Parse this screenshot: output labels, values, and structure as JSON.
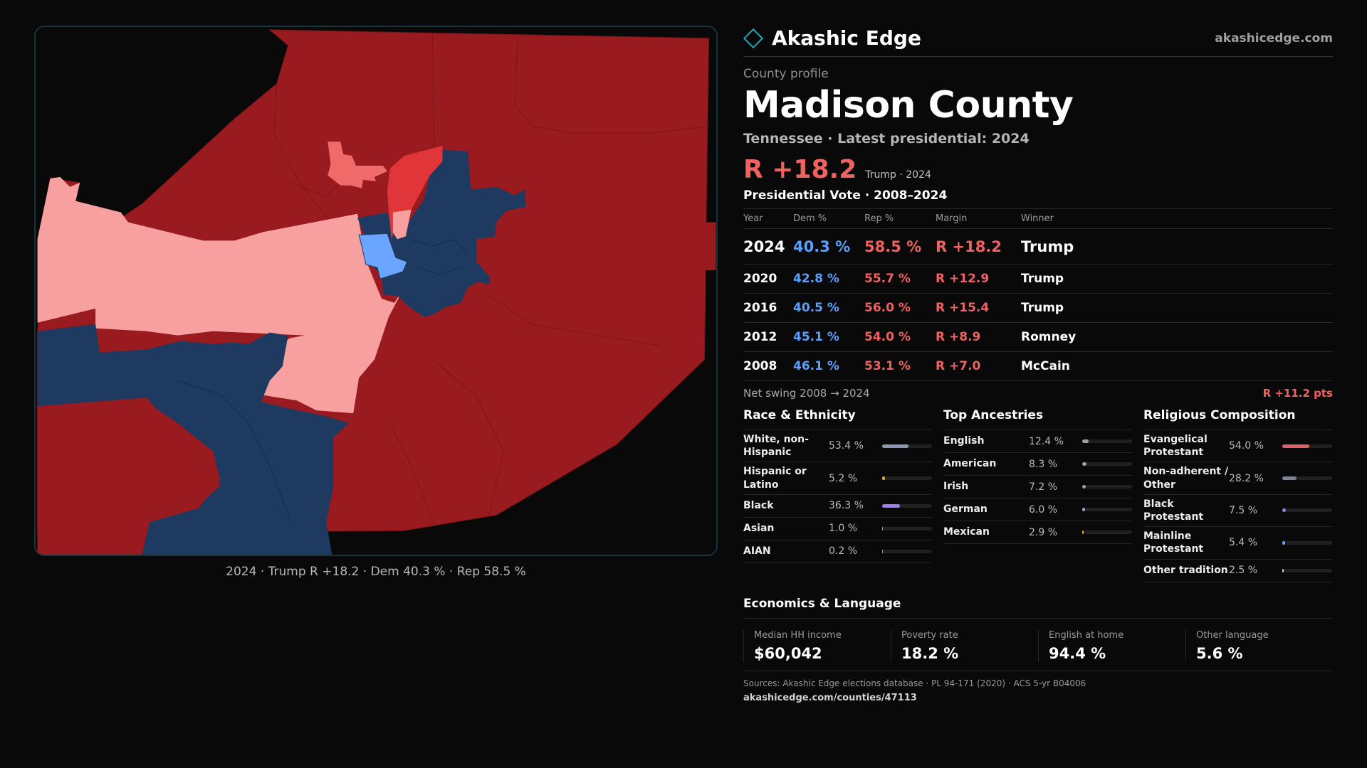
{
  "map": {
    "caption": "2024 · Trump R +18.2 · Dem 40.3 % · Rep 58.5 %"
  },
  "brand": {
    "name": "Akashic Edge",
    "url": "akashicedge.com"
  },
  "profile": {
    "eyebrow": "County profile",
    "title": "Madison County",
    "subline": "Tennessee · Latest presidential: 2024",
    "headline_margin": "R +18.2",
    "headline_note": "Trump · 2024"
  },
  "votes": {
    "title": "Presidential Vote · 2008–2024",
    "headers": {
      "year": "Year",
      "dem": "Dem %",
      "rep": "Rep %",
      "margin": "Margin",
      "winner": "Winner"
    },
    "rows": [
      {
        "year": "2024",
        "dem": "40.3 %",
        "rep": "58.5 %",
        "margin": "R +18.2",
        "winner": "Trump"
      },
      {
        "year": "2020",
        "dem": "42.8 %",
        "rep": "55.7 %",
        "margin": "R +12.9",
        "winner": "Trump"
      },
      {
        "year": "2016",
        "dem": "40.5 %",
        "rep": "56.0 %",
        "margin": "R +15.4",
        "winner": "Trump"
      },
      {
        "year": "2012",
        "dem": "45.1 %",
        "rep": "54.0 %",
        "margin": "R +8.9",
        "winner": "Romney"
      },
      {
        "year": "2008",
        "dem": "46.1 %",
        "rep": "53.1 %",
        "margin": "R +7.0",
        "winner": "McCain"
      }
    ],
    "swing_label": "Net swing 2008 → 2024",
    "swing_value": "R +11.2 pts"
  },
  "race": {
    "title": "Race & Ethnicity",
    "rows": [
      {
        "label": "White, non-Hispanic",
        "pct": "53.4 %",
        "value": 53.4,
        "color": "#8e97b0"
      },
      {
        "label": "Hispanic or Latino",
        "pct": "5.2 %",
        "value": 5.2,
        "color": "#e0a030"
      },
      {
        "label": "Black",
        "pct": "36.3 %",
        "value": 36.3,
        "color": "#9b7ef0"
      },
      {
        "label": "Asian",
        "pct": "1.0 %",
        "value": 1.0,
        "color": "#5fc0c0"
      },
      {
        "label": "AIAN",
        "pct": "0.2 %",
        "value": 0.2,
        "color": "#e08060"
      }
    ]
  },
  "ancestry": {
    "title": "Top Ancestries",
    "rows": [
      {
        "label": "English",
        "pct": "12.4 %",
        "value": 12.4,
        "color": "#9aa0ae"
      },
      {
        "label": "American",
        "pct": "8.3 %",
        "value": 8.3,
        "color": "#9aa0ae"
      },
      {
        "label": "Irish",
        "pct": "7.2 %",
        "value": 7.2,
        "color": "#9aa0ae"
      },
      {
        "label": "German",
        "pct": "6.0 %",
        "value": 6.0,
        "color": "#9aa0ae"
      },
      {
        "label": "Mexican",
        "pct": "2.9 %",
        "value": 2.9,
        "color": "#e0a030"
      }
    ]
  },
  "religion": {
    "title": "Religious Composition",
    "rows": [
      {
        "label": "Evangelical Protestant",
        "pct": "54.0 %",
        "value": 54.0,
        "color": "#e0606a"
      },
      {
        "label": "Non-adherent / Other",
        "pct": "28.2 %",
        "value": 28.2,
        "color": "#7d8496"
      },
      {
        "label": "Black Protestant",
        "pct": "7.5 %",
        "value": 7.5,
        "color": "#9b7ef0"
      },
      {
        "label": "Mainline Protestant",
        "pct": "5.4 %",
        "value": 5.4,
        "color": "#5aa0ff"
      },
      {
        "label": "Other tradition",
        "pct": "2.5 %",
        "value": 2.5,
        "color": "#c8c8c8"
      }
    ]
  },
  "economics": {
    "title": "Economics & Language",
    "cells": [
      {
        "label": "Median HH income",
        "value": "$60,042"
      },
      {
        "label": "Poverty rate",
        "value": "18.2 %"
      },
      {
        "label": "English at home",
        "value": "94.4 %"
      },
      {
        "label": "Other language",
        "value": "5.6 %"
      }
    ]
  },
  "footer": {
    "sources": "Sources: Akashic Edge elections database · PL 94-171 (2020) · ACS 5-yr B04006",
    "url": "akashicedge.com/counties/47113"
  },
  "colors": {
    "strong_rep": "#9a1b1f",
    "lean_rep": "#e0363a",
    "light_rep": "#f06a6a",
    "pale_rep": "#f8a0a0",
    "strong_dem": "#1f3a60",
    "light_dem": "#6aa6ff"
  }
}
